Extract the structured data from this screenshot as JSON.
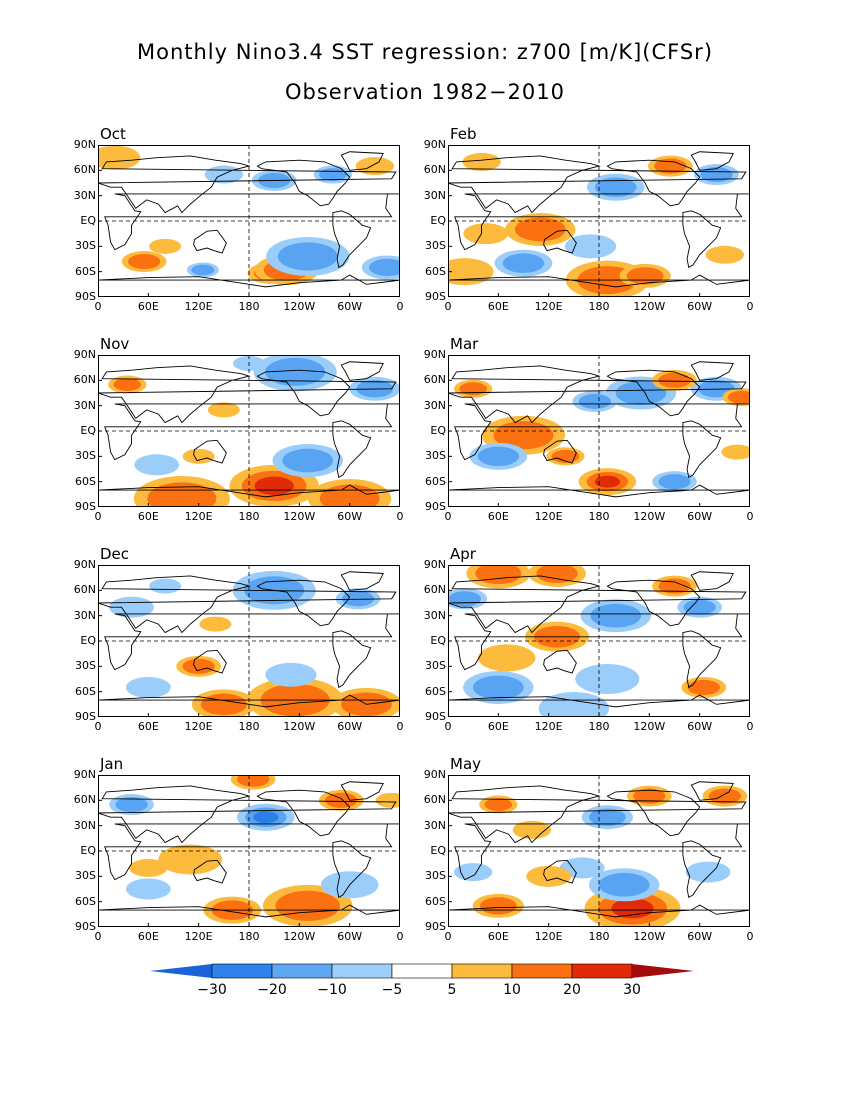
{
  "title_line1": "Monthly Nino3.4 SST regression: z700 [m/K](CFSr)",
  "title_line2": "Observation 1982−2010",
  "lat_labels": [
    "90N",
    "60N",
    "30N",
    "EQ",
    "30S",
    "60S",
    "90S"
  ],
  "lon_labels": [
    "0",
    "60E",
    "120E",
    "180",
    "120W",
    "60W",
    "0"
  ],
  "panels": [
    {
      "name": "Oct",
      "blobs": [
        {
          "lon": 205,
          "lat": -62,
          "r": 14,
          "v": 22
        },
        {
          "lon": 225,
          "lat": -58,
          "r": 20,
          "v": 12
        },
        {
          "lon": 55,
          "lat": -48,
          "r": 14,
          "v": 12
        },
        {
          "lon": 125,
          "lat": -58,
          "r": 10,
          "v": -10
        },
        {
          "lon": 250,
          "lat": -42,
          "r": 26,
          "v": -12
        },
        {
          "lon": 280,
          "lat": 55,
          "r": 12,
          "v": -10
        },
        {
          "lon": 210,
          "lat": 48,
          "r": 14,
          "v": -12
        },
        {
          "lon": 150,
          "lat": 55,
          "r": 12,
          "v": -8
        },
        {
          "lon": 20,
          "lat": 75,
          "r": 16,
          "v": 8
        },
        {
          "lon": 330,
          "lat": 65,
          "r": 12,
          "v": 7
        },
        {
          "lon": 345,
          "lat": -55,
          "r": 16,
          "v": -12
        },
        {
          "lon": 80,
          "lat": -30,
          "r": 10,
          "v": 7
        }
      ]
    },
    {
      "name": "Feb",
      "blobs": [
        {
          "lon": 190,
          "lat": -70,
          "r": 26,
          "v": 18
        },
        {
          "lon": 235,
          "lat": -65,
          "r": 16,
          "v": 12
        },
        {
          "lon": 200,
          "lat": 40,
          "r": 18,
          "v": -18
        },
        {
          "lon": 265,
          "lat": 65,
          "r": 14,
          "v": 12
        },
        {
          "lon": 320,
          "lat": 55,
          "r": 14,
          "v": -10
        },
        {
          "lon": 110,
          "lat": -10,
          "r": 22,
          "v": 10
        },
        {
          "lon": 45,
          "lat": -15,
          "r": 14,
          "v": 7
        },
        {
          "lon": 90,
          "lat": -50,
          "r": 18,
          "v": -10
        },
        {
          "lon": 170,
          "lat": -30,
          "r": 16,
          "v": -8
        },
        {
          "lon": 20,
          "lat": -60,
          "r": 18,
          "v": 7
        },
        {
          "lon": 40,
          "lat": 70,
          "r": 12,
          "v": 6
        },
        {
          "lon": 330,
          "lat": -40,
          "r": 12,
          "v": 7
        }
      ]
    },
    {
      "name": "Nov",
      "blobs": [
        {
          "lon": 210,
          "lat": -65,
          "r": 28,
          "v": 22
        },
        {
          "lon": 100,
          "lat": -80,
          "r": 30,
          "v": 12
        },
        {
          "lon": 300,
          "lat": -80,
          "r": 26,
          "v": 12
        },
        {
          "lon": 35,
          "lat": 55,
          "r": 12,
          "v": 12
        },
        {
          "lon": 235,
          "lat": 70,
          "r": 26,
          "v": -12
        },
        {
          "lon": 330,
          "lat": 50,
          "r": 16,
          "v": -10
        },
        {
          "lon": 120,
          "lat": -30,
          "r": 10,
          "v": 8
        },
        {
          "lon": 150,
          "lat": 25,
          "r": 10,
          "v": 8
        },
        {
          "lon": 250,
          "lat": -35,
          "r": 22,
          "v": -10
        },
        {
          "lon": 70,
          "lat": -40,
          "r": 14,
          "v": -8
        },
        {
          "lon": 180,
          "lat": 80,
          "r": 10,
          "v": -7
        }
      ]
    },
    {
      "name": "Mar",
      "blobs": [
        {
          "lon": 190,
          "lat": -60,
          "r": 18,
          "v": 20
        },
        {
          "lon": 270,
          "lat": -60,
          "r": 14,
          "v": -10
        },
        {
          "lon": 230,
          "lat": 45,
          "r": 22,
          "v": -14
        },
        {
          "lon": 175,
          "lat": 35,
          "r": 14,
          "v": -10
        },
        {
          "lon": 320,
          "lat": 50,
          "r": 16,
          "v": -10
        },
        {
          "lon": 270,
          "lat": 60,
          "r": 14,
          "v": 10
        },
        {
          "lon": 90,
          "lat": -5,
          "r": 26,
          "v": 10
        },
        {
          "lon": 30,
          "lat": 50,
          "r": 12,
          "v": 10
        },
        {
          "lon": 60,
          "lat": -30,
          "r": 18,
          "v": -10
        },
        {
          "lon": 140,
          "lat": -30,
          "r": 12,
          "v": 10
        },
        {
          "lon": 350,
          "lat": 40,
          "r": 12,
          "v": 10
        },
        {
          "lon": 345,
          "lat": -25,
          "r": 10,
          "v": 7
        }
      ]
    },
    {
      "name": "Dec",
      "blobs": [
        {
          "lon": 235,
          "lat": -70,
          "r": 30,
          "v": 18
        },
        {
          "lon": 150,
          "lat": -75,
          "r": 20,
          "v": 10
        },
        {
          "lon": 320,
          "lat": -75,
          "r": 22,
          "v": 10
        },
        {
          "lon": 120,
          "lat": -30,
          "r": 14,
          "v": 10
        },
        {
          "lon": 210,
          "lat": 60,
          "r": 26,
          "v": -12
        },
        {
          "lon": 310,
          "lat": 50,
          "r": 14,
          "v": -10
        },
        {
          "lon": 40,
          "lat": 40,
          "r": 14,
          "v": -8
        },
        {
          "lon": 230,
          "lat": -40,
          "r": 16,
          "v": -8
        },
        {
          "lon": 60,
          "lat": -55,
          "r": 14,
          "v": -8
        },
        {
          "lon": 140,
          "lat": 20,
          "r": 10,
          "v": 8
        },
        {
          "lon": 80,
          "lat": 65,
          "r": 10,
          "v": -7
        }
      ]
    },
    {
      "name": "Apr",
      "blobs": [
        {
          "lon": 60,
          "lat": 80,
          "r": 20,
          "v": 14
        },
        {
          "lon": 130,
          "lat": 80,
          "r": 18,
          "v": 12
        },
        {
          "lon": 270,
          "lat": 65,
          "r": 14,
          "v": 14
        },
        {
          "lon": 305,
          "lat": -55,
          "r": 14,
          "v": 18
        },
        {
          "lon": 130,
          "lat": 5,
          "r": 20,
          "v": 12
        },
        {
          "lon": 70,
          "lat": -20,
          "r": 18,
          "v": 8
        },
        {
          "lon": 200,
          "lat": 30,
          "r": 22,
          "v": -12
        },
        {
          "lon": 60,
          "lat": -55,
          "r": 22,
          "v": -10
        },
        {
          "lon": 190,
          "lat": -45,
          "r": 20,
          "v": -8
        },
        {
          "lon": 300,
          "lat": 40,
          "r": 14,
          "v": -10
        },
        {
          "lon": 20,
          "lat": 50,
          "r": 14,
          "v": -10
        },
        {
          "lon": 150,
          "lat": -80,
          "r": 22,
          "v": -8
        }
      ]
    },
    {
      "name": "Jan",
      "blobs": [
        {
          "lon": 200,
          "lat": 40,
          "r": 18,
          "v": -20
        },
        {
          "lon": 250,
          "lat": -65,
          "r": 28,
          "v": 12
        },
        {
          "lon": 160,
          "lat": -70,
          "r": 18,
          "v": 12
        },
        {
          "lon": 110,
          "lat": -10,
          "r": 20,
          "v": 8
        },
        {
          "lon": 60,
          "lat": -20,
          "r": 12,
          "v": 7
        },
        {
          "lon": 290,
          "lat": 60,
          "r": 14,
          "v": 10
        },
        {
          "lon": 185,
          "lat": 85,
          "r": 14,
          "v": 12
        },
        {
          "lon": 40,
          "lat": 55,
          "r": 14,
          "v": -10
        },
        {
          "lon": 60,
          "lat": -45,
          "r": 14,
          "v": -8
        },
        {
          "lon": 300,
          "lat": -40,
          "r": 18,
          "v": -8
        },
        {
          "lon": 350,
          "lat": 60,
          "r": 10,
          "v": 8
        }
      ]
    },
    {
      "name": "May",
      "blobs": [
        {
          "lon": 220,
          "lat": -68,
          "r": 30,
          "v": 24
        },
        {
          "lon": 60,
          "lat": -65,
          "r": 16,
          "v": 12
        },
        {
          "lon": 210,
          "lat": -40,
          "r": 22,
          "v": -12
        },
        {
          "lon": 160,
          "lat": -20,
          "r": 14,
          "v": -8
        },
        {
          "lon": 240,
          "lat": 65,
          "r": 14,
          "v": 12
        },
        {
          "lon": 330,
          "lat": 65,
          "r": 14,
          "v": 14
        },
        {
          "lon": 60,
          "lat": 55,
          "r": 12,
          "v": 10
        },
        {
          "lon": 190,
          "lat": 40,
          "r": 16,
          "v": -10
        },
        {
          "lon": 120,
          "lat": -30,
          "r": 14,
          "v": 8
        },
        {
          "lon": 30,
          "lat": -25,
          "r": 12,
          "v": -8
        },
        {
          "lon": 100,
          "lat": 25,
          "r": 12,
          "v": 8
        },
        {
          "lon": 310,
          "lat": -25,
          "r": 14,
          "v": -8
        }
      ]
    }
  ],
  "colorbar": {
    "levels": [
      -30,
      -20,
      -10,
      -5,
      5,
      10,
      20,
      30
    ],
    "labels": [
      "−30",
      "−20",
      "−10",
      "−5",
      "5",
      "10",
      "20",
      "30"
    ],
    "colors": [
      "#1e6fe0",
      "#2a86ef",
      "#4fa1f2",
      "#8fc6f8",
      "#ffffff",
      "#fdb83a",
      "#fd6f0e",
      "#e42a0a",
      "#a00f0f",
      "#1a5bd0"
    ],
    "neg_colors": [
      "#1f5fd4",
      "#2b80e8",
      "#58a4f3",
      "#9acdf9"
    ],
    "pos_colors": [
      "#fcbb3c",
      "#fb7111",
      "#e12a08",
      "#a30c0c"
    ]
  }
}
